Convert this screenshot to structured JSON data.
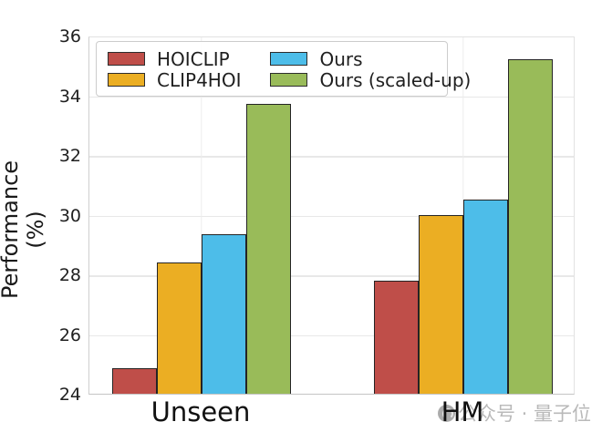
{
  "figure": {
    "watermark": {
      "text": "公众号 · 量子位",
      "logo": "qbitai-logo",
      "color": "#b9b9b9"
    }
  },
  "chart_data": {
    "type": "bar",
    "title": "",
    "xlabel": "",
    "ylabel": "Performance (%)",
    "categories": [
      "Unseen",
      "HM"
    ],
    "series": [
      {
        "name": "HOICLIP",
        "color": "#bf4e49",
        "values": [
          24.85,
          27.8
        ]
      },
      {
        "name": "CLIP4HOI",
        "color": "#ebae23",
        "values": [
          28.4,
          30.0
        ]
      },
      {
        "name": "Ours",
        "color": "#4dbde9",
        "values": [
          29.35,
          30.5
        ]
      },
      {
        "name": "Ours (scaled-up)",
        "color": "#99bb59",
        "values": [
          33.7,
          35.2
        ]
      }
    ],
    "ylim": [
      24,
      36
    ],
    "yticks": [
      24,
      26,
      28,
      30,
      32,
      34,
      36
    ],
    "grid": true,
    "legend_position": "upper left",
    "bar_edge_color": "#242424"
  }
}
